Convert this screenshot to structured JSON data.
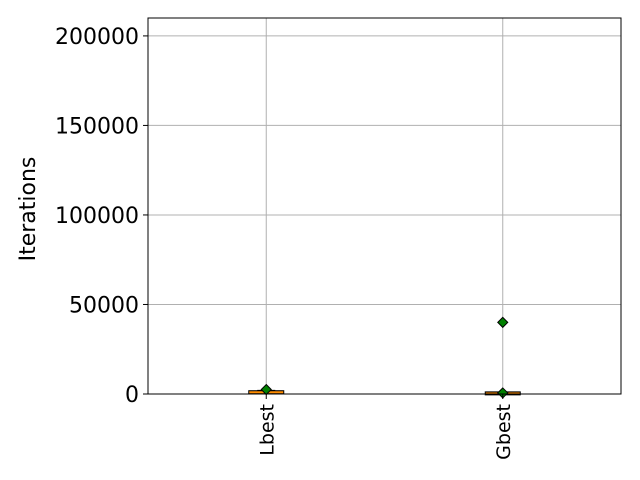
{
  "chart_data": {
    "type": "box",
    "title": "",
    "xlabel": "",
    "ylabel": "Iterations",
    "ylim": [
      0,
      210000
    ],
    "yticks": [
      0,
      50000,
      100000,
      150000,
      200000
    ],
    "grid": true,
    "categories": [
      "Lbest",
      "Gbest"
    ],
    "boxes": [
      {
        "category": "Lbest",
        "whisker_low": 0,
        "q1": 500,
        "median": 1000,
        "q3": 1500,
        "whisker_high": 2000,
        "mean": 2500,
        "outliers": []
      },
      {
        "category": "Gbest",
        "whisker_low": 0,
        "q1": 0,
        "median": 300,
        "q3": 700,
        "whisker_high": 1000,
        "mean": 600,
        "outliers": [
          40000
        ]
      }
    ],
    "colors": {
      "box_edge": "#000000",
      "median": "#ff8c00",
      "marker_fill": "#008000",
      "marker_edge": "#000000",
      "grid": "#b0b0b0"
    }
  }
}
